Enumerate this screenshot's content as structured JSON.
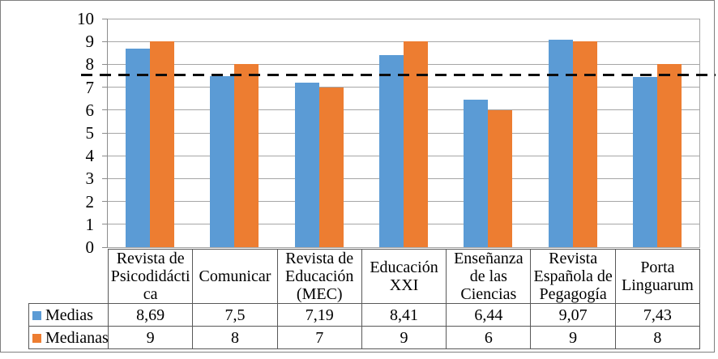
{
  "figure": {
    "background": "#ffffff",
    "border_color": "#7f7f7f"
  },
  "chart_data": {
    "type": "bar",
    "title": "",
    "xlabel": "",
    "ylabel": "",
    "categories": [
      "Revista de Psicodidáctica",
      "Comunicar",
      "Revista de Educación (MEC)",
      "Educación XXI",
      "Enseñanza de las Ciencias",
      "Revista Española de Pegagogía",
      "Porta Linguarum"
    ],
    "series": [
      {
        "name": "Medias",
        "color": "#5B9BD5",
        "values": [
          8.69,
          7.5,
          7.19,
          8.41,
          6.44,
          9.07,
          7.43
        ]
      },
      {
        "name": "Medianas",
        "color": "#ED7D31",
        "values": [
          9,
          8,
          7,
          9,
          6,
          9,
          8
        ]
      }
    ],
    "ylim": [
      0,
      10
    ],
    "yticks": [
      0,
      1,
      2,
      3,
      4,
      5,
      6,
      7,
      8,
      9,
      10
    ],
    "grid": true,
    "gridline_color": "#a6a6a6",
    "reference_line": {
      "value": 7.55,
      "color": "#000000",
      "style": "dashed"
    },
    "legend_position": "table-left"
  },
  "table": {
    "rows": [
      {
        "label": "Medias",
        "values_display": [
          "8,69",
          "7,5",
          "7,19",
          "8,41",
          "6,44",
          "9,07",
          "7,43"
        ]
      },
      {
        "label": "Medianas",
        "values_display": [
          "9",
          "8",
          "7",
          "9",
          "6",
          "9",
          "8"
        ]
      }
    ]
  }
}
